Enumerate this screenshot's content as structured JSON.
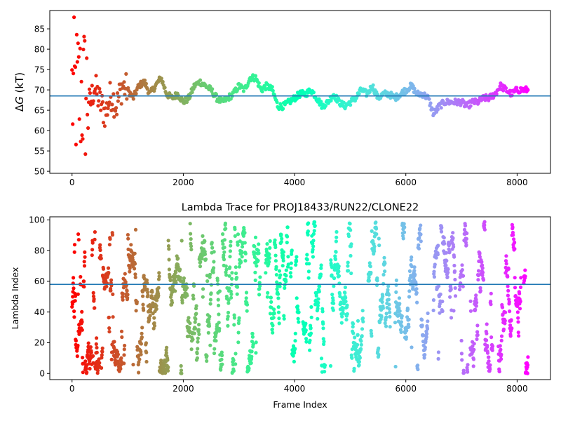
{
  "chart_data": [
    {
      "type": "scatter",
      "title": "",
      "xlabel": "",
      "ylabel": "ΔG (kT)",
      "ylabel_symbol": "Δ",
      "ylabel_var": "G",
      "ylabel_unit": " (kT)",
      "xlim": [
        -400,
        8600
      ],
      "ylim": [
        49.5,
        89.5
      ],
      "xticks": [
        0,
        2000,
        4000,
        6000,
        8000
      ],
      "yticks": [
        50,
        55,
        60,
        65,
        70,
        75,
        80,
        85
      ],
      "reference_line_y": 68.5,
      "n_frames": 8200,
      "colormap": "rainbow (reversed over frame index)",
      "trace_keypoints": [
        [
          0,
          70
        ],
        [
          30,
          86
        ],
        [
          60,
          52
        ],
        [
          90,
          82
        ],
        [
          120,
          58
        ],
        [
          150,
          75
        ],
        [
          200,
          64
        ],
        [
          250,
          73
        ],
        [
          320,
          66
        ],
        [
          400,
          71
        ],
        [
          500,
          67
        ],
        [
          600,
          64
        ],
        [
          700,
          69
        ],
        [
          800,
          66
        ],
        [
          900,
          71
        ],
        [
          1000,
          70
        ],
        [
          1100,
          68
        ],
        [
          1200,
          71
        ],
        [
          1300,
          72
        ],
        [
          1400,
          69
        ],
        [
          1500,
          71
        ],
        [
          1600,
          73
        ],
        [
          1700,
          69
        ],
        [
          1800,
          68
        ],
        [
          1900,
          69
        ],
        [
          2000,
          67
        ],
        [
          2100,
          68
        ],
        [
          2200,
          71
        ],
        [
          2300,
          72
        ],
        [
          2400,
          71
        ],
        [
          2500,
          70
        ],
        [
          2600,
          68
        ],
        [
          2700,
          67
        ],
        [
          2800,
          68
        ],
        [
          2900,
          69
        ],
        [
          3000,
          71
        ],
        [
          3100,
          70
        ],
        [
          3200,
          73
        ],
        [
          3300,
          73
        ],
        [
          3400,
          70
        ],
        [
          3500,
          71
        ],
        [
          3600,
          70
        ],
        [
          3700,
          66
        ],
        [
          3800,
          66
        ],
        [
          3900,
          67
        ],
        [
          4000,
          68
        ],
        [
          4100,
          69
        ],
        [
          4200,
          69
        ],
        [
          4300,
          70
        ],
        [
          4400,
          68
        ],
        [
          4500,
          66
        ],
        [
          4600,
          67
        ],
        [
          4700,
          69
        ],
        [
          4800,
          67
        ],
        [
          4900,
          66
        ],
        [
          5000,
          67
        ],
        [
          5100,
          68
        ],
        [
          5200,
          70
        ],
        [
          5300,
          69
        ],
        [
          5400,
          71
        ],
        [
          5500,
          68
        ],
        [
          5600,
          69
        ],
        [
          5700,
          69
        ],
        [
          5800,
          68
        ],
        [
          5900,
          69
        ],
        [
          6000,
          70
        ],
        [
          6100,
          71
        ],
        [
          6200,
          69
        ],
        [
          6300,
          69
        ],
        [
          6400,
          68
        ],
        [
          6500,
          64
        ],
        [
          6600,
          66
        ],
        [
          6700,
          67
        ],
        [
          6800,
          67
        ],
        [
          6900,
          67
        ],
        [
          7000,
          67
        ],
        [
          7100,
          66
        ],
        [
          7200,
          67
        ],
        [
          7300,
          67
        ],
        [
          7400,
          68
        ],
        [
          7500,
          68
        ],
        [
          7600,
          69
        ],
        [
          7700,
          71
        ],
        [
          7800,
          70
        ],
        [
          7900,
          69
        ],
        [
          8000,
          70
        ],
        [
          8100,
          70
        ],
        [
          8200,
          70
        ]
      ]
    },
    {
      "type": "scatter",
      "title": "Lambda Trace for PROJ18433/RUN22/CLONE22",
      "xlabel": "Frame Index",
      "ylabel": "Lambda Index",
      "xlim": [
        -400,
        8600
      ],
      "ylim": [
        -4,
        102
      ],
      "xticks": [
        0,
        2000,
        4000,
        6000,
        8000
      ],
      "yticks": [
        0,
        20,
        40,
        60,
        80,
        100
      ],
      "reference_line_y": 58,
      "n_frames": 8200,
      "lambda_range": [
        0,
        99
      ],
      "colormap": "rainbow (reversed over frame index)"
    }
  ],
  "colors": {
    "reference_line": "#1f77b4",
    "axes": "#000000"
  }
}
